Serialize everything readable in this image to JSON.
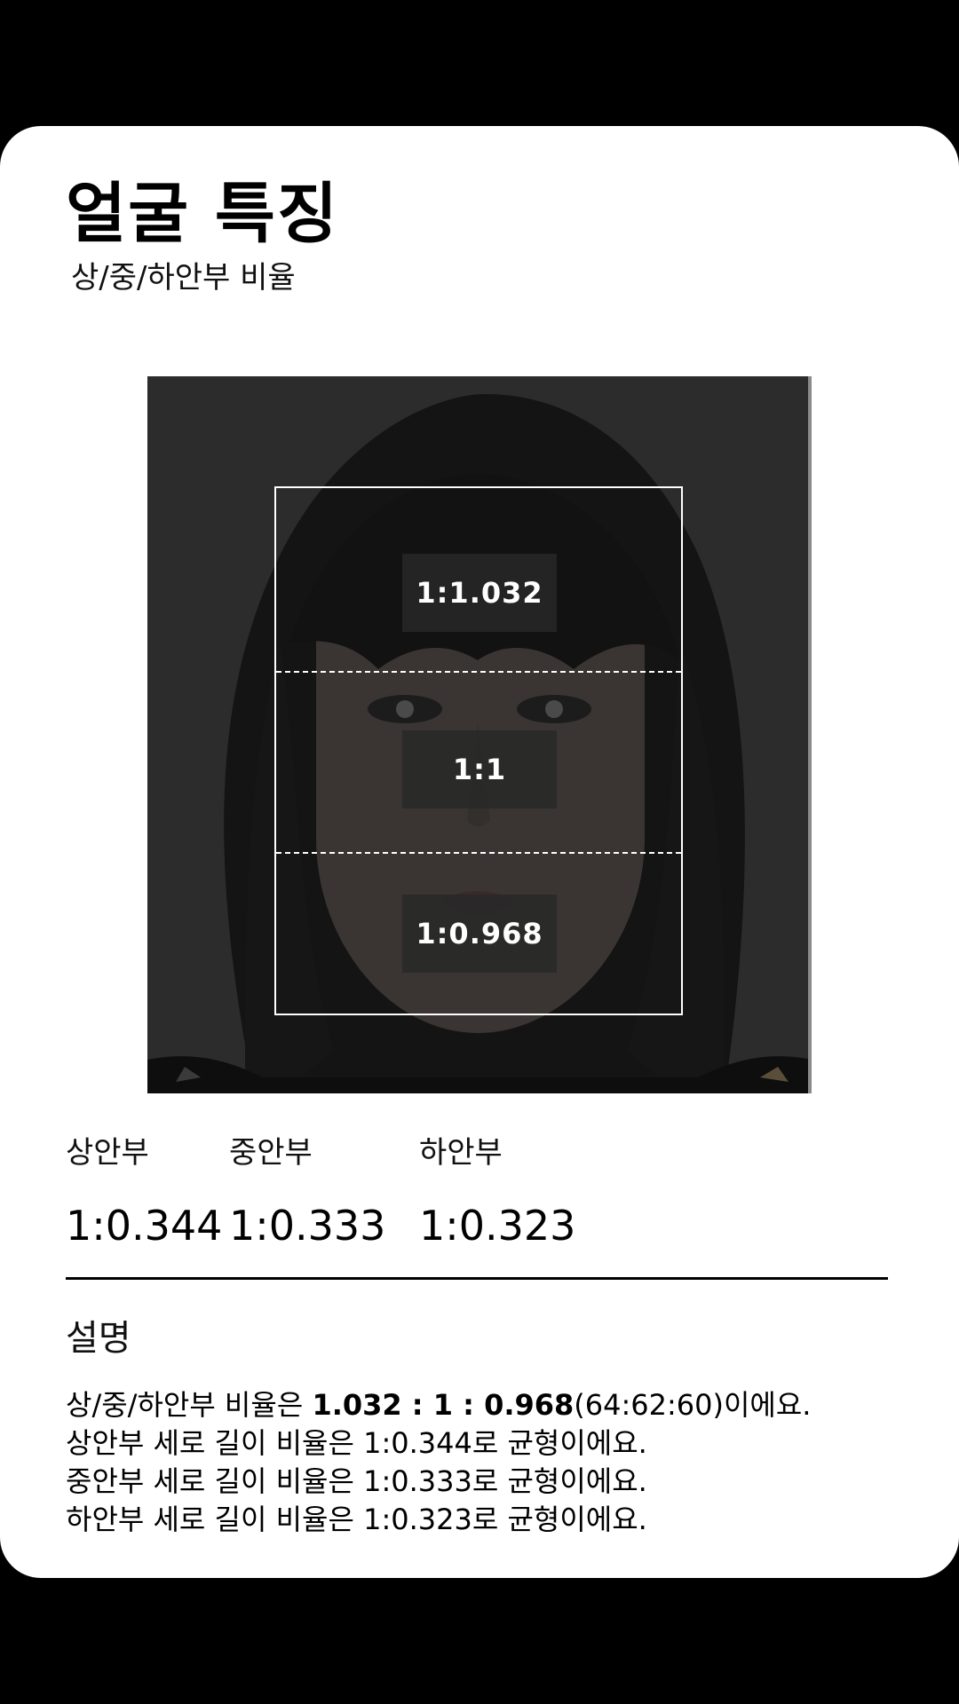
{
  "header": {
    "title": "얼굴 특징",
    "subtitle": "상/중/하안부 비율"
  },
  "photo": {
    "overlay_labels": {
      "upper": "1:1.032",
      "middle": "1:1",
      "lower": "1:0.968"
    }
  },
  "stats": [
    {
      "label": "상안부",
      "value": "1:0.344"
    },
    {
      "label": "중안부",
      "value": "1:0.333"
    },
    {
      "label": "하안부",
      "value": "1:0.323"
    }
  ],
  "description": {
    "title": "설명",
    "line1_prefix": "상/중/하안부 비율은 ",
    "line1_bold": "1.032 : 1 : 0.968",
    "line1_suffix": "(64:62:60)이에요.",
    "line2": "상안부 세로 길이 비율은 1:0.344로 균형이에요.",
    "line3": "중안부 세로 길이 비율은 1:0.333로 균형이에요.",
    "line4": "하안부 세로 길이 비율은 1:0.323로 균형이에요."
  },
  "colors": {
    "background": "#000000",
    "card": "#ffffff",
    "photo_dim": "#2b2b2b",
    "overlay_line": "#ffffff"
  }
}
